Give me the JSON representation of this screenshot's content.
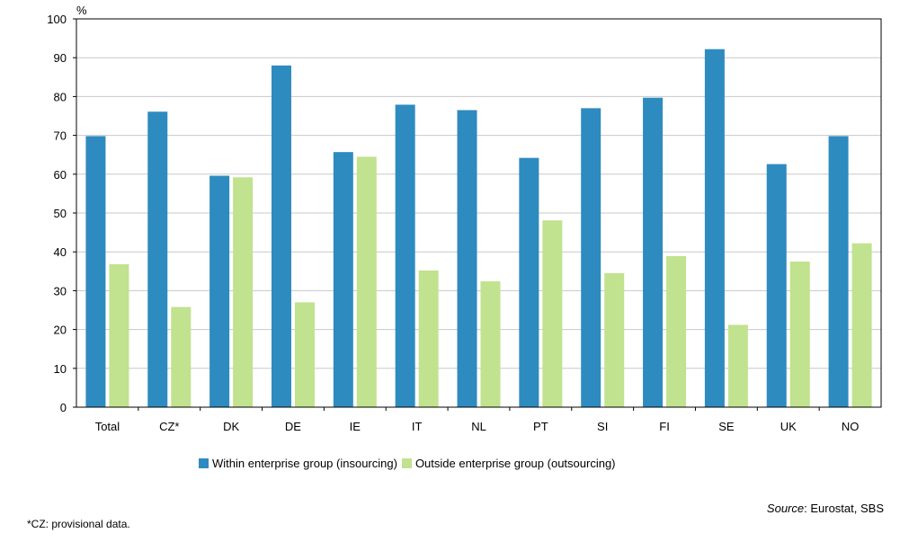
{
  "chart_data": {
    "type": "bar",
    "unit_label": "%",
    "ylim": [
      0,
      100
    ],
    "yticks": [
      0,
      10,
      20,
      30,
      40,
      50,
      60,
      70,
      80,
      90,
      100
    ],
    "grid": true,
    "legend_position": "bottom",
    "categories": [
      "Total",
      "CZ*",
      "DK",
      "DE",
      "IE",
      "IT",
      "NL",
      "PT",
      "SI",
      "FI",
      "SE",
      "UK",
      "NO"
    ],
    "series": [
      {
        "name": "Within enterprise group (insourcing)",
        "color": "#2e8bbf",
        "values": [
          69.8,
          76.1,
          59.6,
          88.0,
          65.7,
          77.9,
          76.5,
          64.2,
          77.0,
          79.7,
          92.2,
          62.6,
          69.8
        ]
      },
      {
        "name": "Outside enterprise group (outsourcing)",
        "color": "#c1e28e",
        "values": [
          36.8,
          25.8,
          59.2,
          27.0,
          64.5,
          35.2,
          32.4,
          48.1,
          34.5,
          38.9,
          21.2,
          37.5,
          42.2
        ]
      }
    ]
  },
  "source": {
    "label": "Source",
    "text": ": Eurostat, SBS"
  },
  "footnote": "*CZ: provisional data."
}
